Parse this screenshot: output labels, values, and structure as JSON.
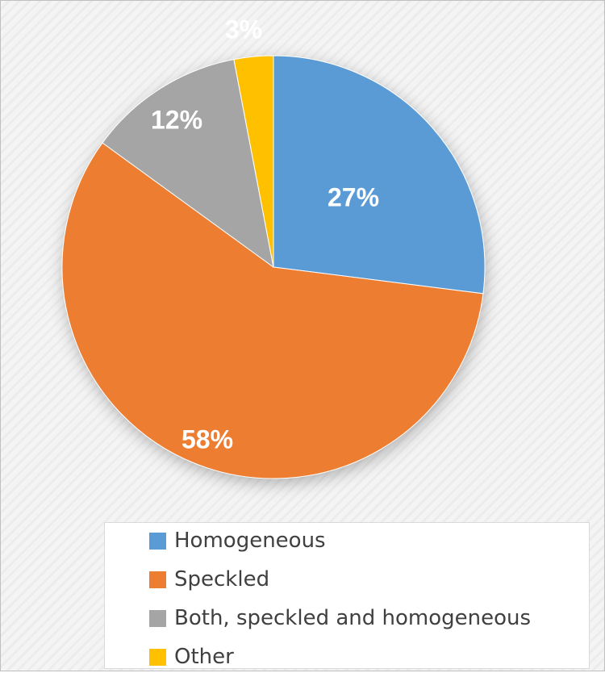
{
  "chart_data": {
    "type": "pie",
    "title": "",
    "slices": [
      {
        "label": "Homogeneous",
        "value": 27,
        "display": "27%",
        "color": "#5B9BD5"
      },
      {
        "label": "Speckled",
        "value": 58,
        "display": "58%",
        "color": "#ED7D31"
      },
      {
        "label": "Both, speckled and homogeneous",
        "value": 12,
        "display": "12%",
        "color": "#A5A5A5"
      },
      {
        "label": "Other",
        "value": 3,
        "display": "3%",
        "color": "#FFC000"
      }
    ],
    "legend_position": "bottom"
  }
}
